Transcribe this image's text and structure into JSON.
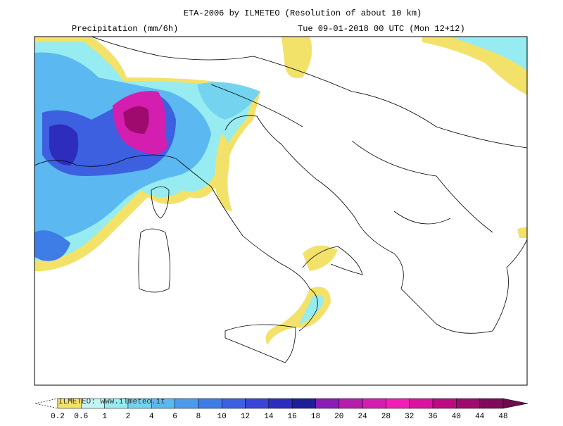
{
  "header": {
    "title": "ETA-2006 by ILMETEO (Resolution of about 10 km)",
    "left": "Precipitation (mm/6h)",
    "right": "Tue 09-01-2018 00 UTC (Mon 12+12)"
  },
  "watermark": "ILMETEO: www.ilmeteo.it",
  "legend": {
    "labels": [
      "0.2",
      "0.6",
      "1",
      "2",
      "4",
      "6",
      "8",
      "10",
      "12",
      "14",
      "16",
      "18",
      "20",
      "24",
      "28",
      "32",
      "36",
      "40",
      "44",
      "48"
    ],
    "colors": [
      "#f2e26a",
      "#c4f5f5",
      "#96ecf0",
      "#74d4f0",
      "#5cb8f0",
      "#4c9aec",
      "#3e7ce6",
      "#3c60e0",
      "#3a44d8",
      "#2e2cbc",
      "#1e1e98",
      "#8a1eb4",
      "#b41eaa",
      "#d41eb0",
      "#f01eb4",
      "#da14a0",
      "#bc0a84",
      "#9e0a6e",
      "#800a5a"
    ],
    "low_color": "#ffffff",
    "high_color": "#6e0a4a"
  }
}
